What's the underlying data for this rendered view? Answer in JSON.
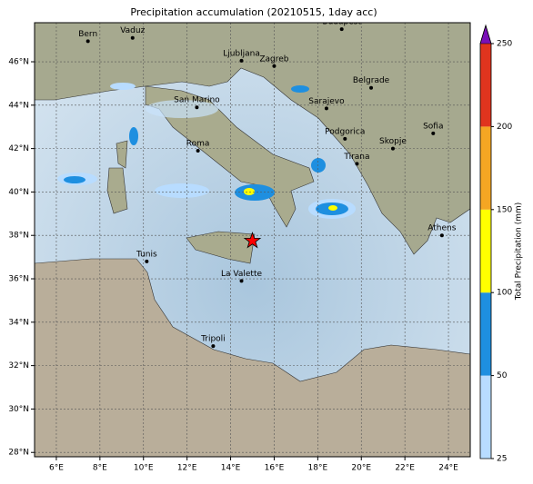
{
  "title": "Precipitation accumulation (20210515, 1day acc)",
  "map": {
    "xlim": [
      5,
      25
    ],
    "ylim": [
      27.8,
      47.8
    ],
    "xticks": [
      {
        "value": 6,
        "label": "6°E"
      },
      {
        "value": 8,
        "label": "8°E"
      },
      {
        "value": 10,
        "label": "10°E"
      },
      {
        "value": 12,
        "label": "12°E"
      },
      {
        "value": 14,
        "label": "14°E"
      },
      {
        "value": 16,
        "label": "16°E"
      },
      {
        "value": 18,
        "label": "18°E"
      },
      {
        "value": 20,
        "label": "20°E"
      },
      {
        "value": 22,
        "label": "22°E"
      },
      {
        "value": 24,
        "label": "24°E"
      }
    ],
    "yticks": [
      {
        "value": 28,
        "label": "28°N"
      },
      {
        "value": 30,
        "label": "30°N"
      },
      {
        "value": 32,
        "label": "32°N"
      },
      {
        "value": 34,
        "label": "34°N"
      },
      {
        "value": 36,
        "label": "36°N"
      },
      {
        "value": 38,
        "label": "38°N"
      },
      {
        "value": 40,
        "label": "40°N"
      },
      {
        "value": 42,
        "label": "42°N"
      },
      {
        "value": 44,
        "label": "44°N"
      },
      {
        "value": 46,
        "label": "46°N"
      }
    ],
    "grid": true,
    "cities": [
      {
        "name": "Bern",
        "lon": 7.45,
        "lat": 46.95
      },
      {
        "name": "Vaduz",
        "lon": 9.5,
        "lat": 47.1
      },
      {
        "name": "Budapest",
        "lon": 19.1,
        "lat": 47.5
      },
      {
        "name": "Ljubljana",
        "lon": 14.5,
        "lat": 46.05
      },
      {
        "name": "Zagreb",
        "lon": 16.0,
        "lat": 45.8
      },
      {
        "name": "Belgrade",
        "lon": 20.45,
        "lat": 44.8
      },
      {
        "name": "San Marino",
        "lon": 12.45,
        "lat": 43.9
      },
      {
        "name": "Sarajevo",
        "lon": 18.4,
        "lat": 43.85
      },
      {
        "name": "Sofia",
        "lon": 23.3,
        "lat": 42.7
      },
      {
        "name": "Podgorica",
        "lon": 19.25,
        "lat": 42.45
      },
      {
        "name": "Skopje",
        "lon": 21.45,
        "lat": 42.0
      },
      {
        "name": "Roma",
        "lon": 12.5,
        "lat": 41.9
      },
      {
        "name": "Tirana",
        "lon": 19.8,
        "lat": 41.3
      },
      {
        "name": "Athens",
        "lon": 23.7,
        "lat": 38.0
      },
      {
        "name": "Tunis",
        "lon": 10.15,
        "lat": 36.8
      },
      {
        "name": "La Valette",
        "lon": 14.5,
        "lat": 35.9
      },
      {
        "name": "Tripoli",
        "lon": 13.2,
        "lat": 32.9
      }
    ],
    "marker": {
      "lon": 15.0,
      "lat": 37.75,
      "color": "#ff0000"
    }
  },
  "colorbar": {
    "label": "Total Precipitation (mm)",
    "ticks": [
      25,
      50,
      100,
      150,
      200,
      250
    ],
    "colors": [
      "#b8dcff",
      "#1e8fe0",
      "#ffff00",
      "#f5a623",
      "#e0341e"
    ],
    "extend_color": "#7a10b8"
  }
}
